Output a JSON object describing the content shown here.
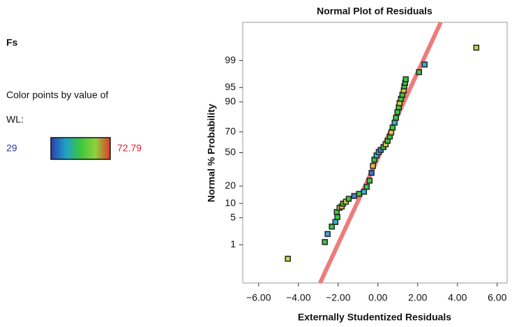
{
  "chart_data": {
    "type": "normal-probability-scatter",
    "response": "Fs",
    "title": "Normal Plot of Residuals",
    "x_label": "Externally Studentized Residuals",
    "y_label": "Normal % Probability",
    "color_scale": {
      "caption": "Color points by value of",
      "label": "WL:",
      "min": 29,
      "max": 72.79,
      "colors": [
        "#2a3fb0",
        "#1fa0c8",
        "#3cc63c",
        "#8fd23c",
        "#e23a2a"
      ],
      "min_color": "#33339a",
      "max_color": "#e0202a"
    },
    "xlim": [
      -6.8,
      6.5
    ],
    "ylim": [
      0.05,
      99.95
    ],
    "y_scale": "normal-probability",
    "xticks": [
      {
        "value": -6,
        "label": "−6.00"
      },
      {
        "value": -4,
        "label": "−4.00"
      },
      {
        "value": -2,
        "label": "−2.00"
      },
      {
        "value": 0,
        "label": "0.00"
      },
      {
        "value": 2,
        "label": "2.00"
      },
      {
        "value": 4,
        "label": "4.00"
      },
      {
        "value": 6,
        "label": "6.00"
      }
    ],
    "yticks": [
      1,
      5,
      10,
      20,
      50,
      70,
      90,
      95,
      99
    ],
    "fit_line": {
      "color": "#ef7b7b",
      "x": [
        -2.91,
        3.16
      ],
      "y": [
        0.05,
        99.95
      ]
    },
    "series": [
      {
        "x": [
          -4.53,
          -2.67,
          -2.53,
          -2.32,
          -2.14,
          -2.04,
          -2.07,
          -1.93,
          -1.82,
          -1.75,
          -1.61,
          -1.47,
          -1.19,
          -0.95,
          -0.7,
          -0.56,
          -0.42,
          -0.32,
          -0.25,
          -0.18,
          -0.07,
          0.04,
          0.14,
          0.28,
          0.39,
          0.49,
          0.6,
          0.67,
          0.74,
          0.84,
          0.91,
          0.98,
          1.05,
          1.09,
          1.16,
          1.23,
          1.3,
          1.33,
          1.37,
          1.4,
          2.07,
          2.35,
          4.95
        ],
        "values": [
          0.37,
          1.2,
          2.0,
          3.1,
          4.0,
          5.2,
          6.7,
          8.2,
          8.7,
          9.9,
          10.8,
          12.2,
          13.7,
          14.9,
          16.2,
          19.4,
          24.0,
          30.5,
          36.9,
          43.0,
          47.2,
          50.7,
          52.8,
          55.6,
          58.4,
          61.8,
          65.8,
          69.5,
          73.7,
          77.6,
          81.1,
          84.7,
          87.4,
          89.5,
          91.3,
          92.8,
          94.2,
          95.3,
          96.1,
          96.8,
          97.9,
          98.7,
          99.6
        ],
        "colors": [
          "#c8d84a",
          "#3cc63c",
          "#4aa0e0",
          "#3cc63c",
          "#2ab8d0",
          "#3cc63c",
          "#3cc63c",
          "#b8d040",
          "#e0c040",
          "#3cc63c",
          "#d8d040",
          "#3cc63c",
          "#4a80d8",
          "#3cc63c",
          "#2ab8d0",
          "#3cc63c",
          "#3cc63c",
          "#3c70d8",
          "#e0c040",
          "#3cc63c",
          "#2ab8d0",
          "#40c8e0",
          "#4a80d8",
          "#3cc63c",
          "#d8d040",
          "#3cc63c",
          "#3cc63c",
          "#e0c040",
          "#3cc63c",
          "#2ab8d0",
          "#3cc63c",
          "#3cc63c",
          "#3cc63c",
          "#d8d040",
          "#3cc63c",
          "#3cc63c",
          "#e0c040",
          "#3cc63c",
          "#3cc63c",
          "#3cc63c",
          "#3cc63c",
          "#2ab8d0",
          "#c8d84a"
        ]
      }
    ]
  }
}
